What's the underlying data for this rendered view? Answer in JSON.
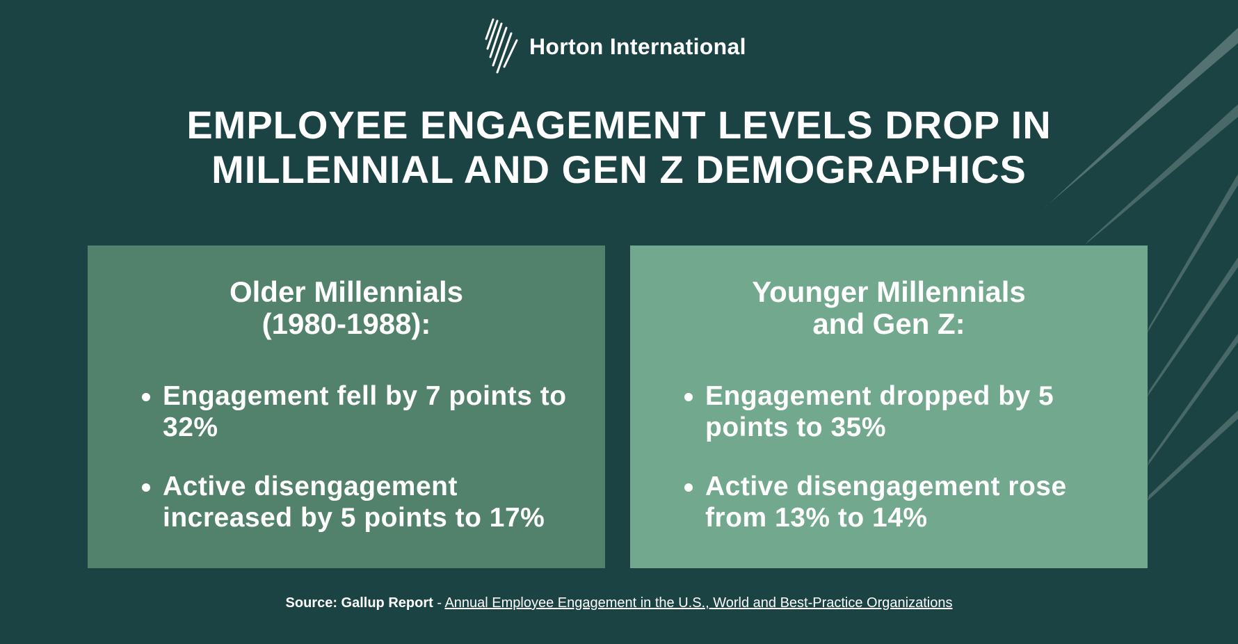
{
  "header": {
    "brand": "Horton International",
    "title_lines": [
      "EMPLOYEE ENGAGEMENT LEVELS DROP IN",
      "MILLENNIAL AND GEN Z DEMOGRAPHICS"
    ]
  },
  "cards": [
    {
      "heading_lines": [
        "Older Millennials",
        "(1980-1988):"
      ],
      "bullets": [
        "Engagement fell by 7 points to 32%",
        "Active disengagement increased by 5 points to 17%"
      ]
    },
    {
      "heading_lines": [
        "Younger Millennials",
        "and Gen Z:"
      ],
      "bullets": [
        "Engagement dropped by 5 points to 35%",
        "Active disengagement rose from 13% to 14%"
      ]
    }
  ],
  "footer": {
    "source_label": "Source: Gallup Report",
    "separator": " - ",
    "link_text": "Annual Employee Engagement in the U.S., World and Best-Practice Organizations"
  }
}
